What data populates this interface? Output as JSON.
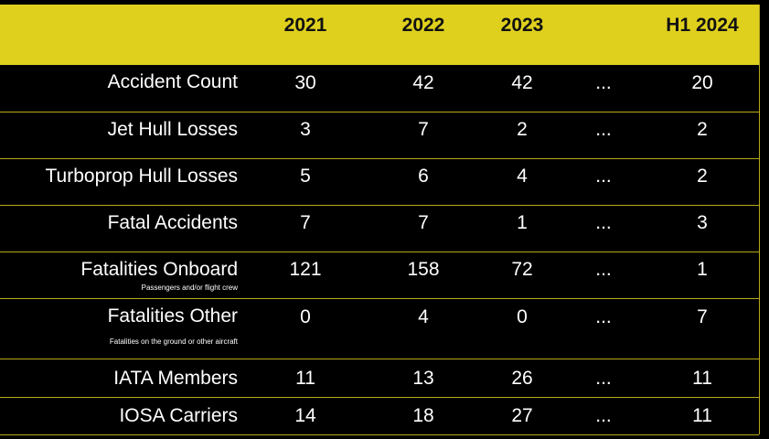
{
  "headers": [
    "2021",
    "2022",
    "2023",
    "H1 2024"
  ],
  "rows": [
    {
      "label": "Accident Count",
      "sub": "",
      "values": [
        "30",
        "42",
        "42",
        "...",
        "20"
      ]
    },
    {
      "label": "Jet Hull Losses",
      "sub": "",
      "values": [
        "3",
        "7",
        "2",
        "...",
        "2"
      ]
    },
    {
      "label": "Turboprop Hull Losses",
      "sub": "",
      "values": [
        "5",
        "6",
        "4",
        "...",
        "2"
      ]
    },
    {
      "label": "Fatal Accidents",
      "sub": "",
      "values": [
        "7",
        "7",
        "1",
        "...",
        "3"
      ]
    },
    {
      "label": "Fatalities Onboard",
      "sub": "Passengers and/or flight crew",
      "values": [
        "121",
        "158",
        "72",
        "...",
        "1"
      ]
    },
    {
      "label": "Fatalities Other",
      "sub": "Fatalities on the ground or other aircraft",
      "values": [
        "0",
        "4",
        "0",
        "...",
        "7"
      ]
    },
    {
      "label": "IATA Members",
      "sub": "",
      "values": [
        "11",
        "13",
        "26",
        "...",
        "11"
      ]
    },
    {
      "label": "IOSA Carriers",
      "sub": "",
      "values": [
        "14",
        "18",
        "27",
        "...",
        "11"
      ]
    }
  ],
  "colors": {
    "header_bg": "#dfd01e",
    "body_bg": "#000000",
    "rule": "#b8aa1a",
    "text": "#ffffff"
  }
}
